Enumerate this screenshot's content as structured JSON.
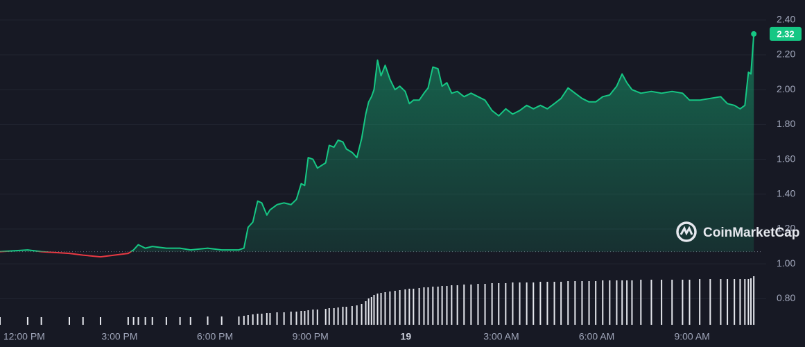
{
  "chart_data": {
    "type": "line",
    "x": [
      -0.76,
      0.11,
      0.54,
      1.42,
      1.85,
      2.4,
      3.27,
      3.44,
      3.59,
      3.81,
      4.03,
      4.47,
      4.9,
      5.23,
      5.77,
      6.21,
      6.75,
      6.91,
      7.04,
      7.19,
      7.34,
      7.47,
      7.63,
      7.73,
      7.95,
      8.17,
      8.39,
      8.56,
      8.71,
      8.82,
      8.93,
      9.08,
      9.22,
      9.48,
      9.59,
      9.74,
      9.87,
      10.02,
      10.13,
      10.31,
      10.46,
      10.61,
      10.74,
      10.83,
      10.92,
      11.0,
      11.11,
      11.22,
      11.35,
      11.5,
      11.66,
      11.81,
      11.98,
      12.11,
      12.24,
      12.42,
      12.57,
      12.7,
      12.85,
      13.01,
      13.14,
      13.29,
      13.44,
      13.62,
      13.83,
      14.05,
      14.27,
      14.49,
      14.71,
      14.92,
      15.14,
      15.36,
      15.58,
      15.8,
      16.01,
      16.23,
      16.45,
      16.67,
      16.88,
      17.1,
      17.32,
      17.54,
      17.76,
      17.97,
      18.19,
      18.41,
      18.63,
      18.8,
      18.95,
      19.11,
      19.39,
      19.72,
      20.04,
      20.37,
      20.7,
      20.92,
      21.24,
      21.57,
      21.9,
      22.11,
      22.33,
      22.51,
      22.66,
      22.77,
      22.85,
      22.94
    ],
    "series": [
      {
        "values": [
          1.07,
          1.08,
          1.07,
          1.06,
          1.05,
          1.04,
          1.06,
          1.08,
          1.11,
          1.09,
          1.1,
          1.09,
          1.09,
          1.08,
          1.09,
          1.08,
          1.08,
          1.09,
          1.21,
          1.24,
          1.36,
          1.35,
          1.28,
          1.31,
          1.34,
          1.35,
          1.34,
          1.37,
          1.46,
          1.45,
          1.61,
          1.6,
          1.55,
          1.58,
          1.68,
          1.67,
          1.71,
          1.7,
          1.66,
          1.64,
          1.61,
          1.72,
          1.86,
          1.93,
          1.96,
          2.0,
          2.17,
          2.08,
          2.14,
          2.06,
          2.0,
          2.02,
          1.99,
          1.92,
          1.94,
          1.94,
          1.98,
          2.01,
          2.13,
          2.12,
          2.02,
          2.04,
          1.98,
          1.99,
          1.96,
          1.98,
          1.96,
          1.94,
          1.88,
          1.85,
          1.89,
          1.86,
          1.88,
          1.91,
          1.89,
          1.91,
          1.89,
          1.92,
          1.95,
          2.01,
          1.98,
          1.95,
          1.93,
          1.93,
          1.96,
          1.97,
          2.02,
          2.09,
          2.04,
          2.0,
          1.98,
          1.99,
          1.98,
          1.99,
          1.98,
          1.94,
          1.94,
          1.95,
          1.96,
          1.92,
          1.91,
          1.89,
          1.91,
          2.1,
          2.09,
          2.32
        ]
      }
    ],
    "volume": [
      11,
      11,
      11,
      11,
      11,
      11,
      11,
      11,
      11,
      11,
      11,
      11,
      11,
      11,
      12,
      12,
      12,
      13,
      14,
      15,
      16,
      16,
      17,
      17,
      18,
      18,
      19,
      19,
      20,
      20,
      21,
      22,
      22,
      23,
      24,
      24,
      25,
      26,
      26,
      27,
      28,
      30,
      34,
      38,
      40,
      43,
      45,
      46,
      47,
      48,
      49,
      50,
      51,
      52,
      52,
      53,
      54,
      54,
      55,
      55,
      56,
      56,
      57,
      57,
      58,
      58,
      59,
      59,
      60,
      60,
      60,
      61,
      61,
      61,
      61,
      62,
      62,
      62,
      62,
      63,
      63,
      63,
      63,
      63,
      64,
      64,
      64,
      64,
      64,
      64,
      65,
      65,
      65,
      65,
      65,
      65,
      66,
      66,
      66,
      66,
      66,
      66,
      66,
      66,
      67,
      70
    ],
    "xlim": [
      -0.76,
      23.22
    ],
    "ylim": [
      0.65,
      2.515
    ],
    "xticks": [
      {
        "value": 0,
        "label": "12:00 PM"
      },
      {
        "value": 3,
        "label": "3:00 PM"
      },
      {
        "value": 6,
        "label": "6:00 PM"
      },
      {
        "value": 9,
        "label": "9:00 PM"
      },
      {
        "value": 12,
        "label": "19"
      },
      {
        "value": 15,
        "label": "3:00 AM"
      },
      {
        "value": 18,
        "label": "6:00 AM"
      },
      {
        "value": 21,
        "label": "9:00 AM"
      }
    ],
    "yticks": [
      {
        "value": 0.8,
        "label": "0.80"
      },
      {
        "value": 1.0,
        "label": "1.00"
      },
      {
        "value": 1.2,
        "label": "1.20"
      },
      {
        "value": 1.4,
        "label": "1.40"
      },
      {
        "value": 1.6,
        "label": "1.60"
      },
      {
        "value": 1.8,
        "label": "1.80"
      },
      {
        "value": 2.0,
        "label": "2.00"
      },
      {
        "value": 2.2,
        "label": "2.20"
      },
      {
        "value": 2.4,
        "label": "2.40"
      }
    ],
    "baseline": 1.07,
    "up_color": "#16c784",
    "down_color": "#ea3943",
    "volume_color": "#e6e8ee",
    "grid": true,
    "watermark": "CoinMarketCap"
  }
}
